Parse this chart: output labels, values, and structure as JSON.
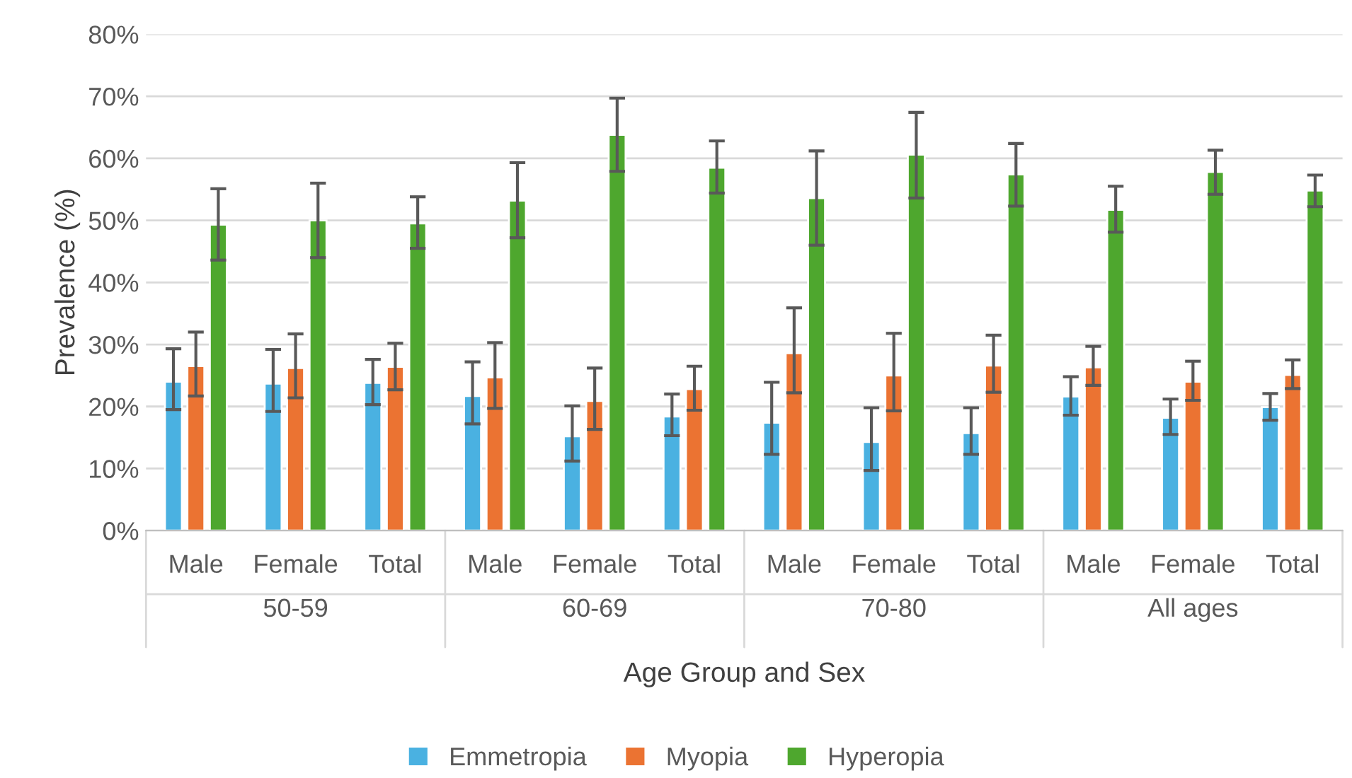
{
  "chart_data": {
    "type": "bar",
    "xlabel": "Age Group and Sex",
    "ylabel": "Prevalence (%)",
    "categories": [
      "Male",
      "Female",
      "Total",
      "Male",
      "Female",
      "Total",
      "Male",
      "Female",
      "Total",
      "Male",
      "Female",
      "Total"
    ],
    "annotations": [
      "50-59",
      "60-69",
      "70-80",
      "All ages"
    ],
    "series": [
      {
        "name": "Emmetropia",
        "color": "#4ab1e1",
        "values": [
          24,
          23.7,
          23.8,
          21.7,
          15.2,
          18.4,
          17.4,
          14.3,
          15.7,
          21.6,
          18.2,
          19.9
        ],
        "errors": [
          [
            19.5,
            29.3
          ],
          [
            19.2,
            29.2
          ],
          [
            20.3,
            27.6
          ],
          [
            17.2,
            27.2
          ],
          [
            11.2,
            20.1
          ],
          [
            15.3,
            22
          ],
          [
            12.3,
            23.9
          ],
          [
            9.7,
            19.8
          ],
          [
            12.3,
            19.8
          ],
          [
            18.6,
            24.8
          ],
          [
            15.5,
            21.2
          ],
          [
            17.8,
            22.1
          ]
        ]
      },
      {
        "name": "Myopia",
        "color": "#eb7332",
        "values": [
          26.5,
          26.2,
          26.4,
          24.7,
          20.9,
          22.8,
          28.6,
          25,
          26.6,
          26.3,
          24,
          25.1
        ],
        "errors": [
          [
            21.7,
            32
          ],
          [
            21.4,
            31.7
          ],
          [
            22.7,
            30.2
          ],
          [
            19.7,
            30.3
          ],
          [
            16.3,
            26.2
          ],
          [
            19.4,
            26.5
          ],
          [
            22.2,
            35.9
          ],
          [
            19.3,
            31.8
          ],
          [
            22.3,
            31.5
          ],
          [
            23.4,
            29.7
          ],
          [
            21,
            27.3
          ],
          [
            22.9,
            27.5
          ]
        ]
      },
      {
        "name": "Hyperopia",
        "color": "#4ea72e",
        "values": [
          49.3,
          50,
          49.5,
          53.2,
          63.8,
          58.5,
          53.6,
          60.6,
          57.4,
          51.7,
          57.8,
          54.8
        ],
        "errors": [
          [
            43.6,
            55.1
          ],
          [
            44,
            56
          ],
          [
            45.5,
            53.8
          ],
          [
            47.2,
            59.3
          ],
          [
            57.9,
            69.7
          ],
          [
            54.4,
            62.8
          ],
          [
            46,
            61.2
          ],
          [
            53.6,
            67.4
          ],
          [
            52.3,
            62.4
          ],
          [
            48.1,
            55.5
          ],
          [
            54.2,
            61.3
          ],
          [
            52.2,
            57.3
          ]
        ]
      }
    ],
    "ylim": [
      0,
      80
    ],
    "yticks": [
      {
        "value": 0,
        "label": "0%"
      },
      {
        "value": 10,
        "label": "10%"
      },
      {
        "value": 20,
        "label": "20%"
      },
      {
        "value": 30,
        "label": "30%"
      },
      {
        "value": 40,
        "label": "40%"
      },
      {
        "value": 50,
        "label": "50%"
      },
      {
        "value": 60,
        "label": "60%"
      },
      {
        "value": 70,
        "label": "70%"
      },
      {
        "value": 80,
        "label": "80%"
      }
    ],
    "grid": "y",
    "legend": "bottom"
  }
}
